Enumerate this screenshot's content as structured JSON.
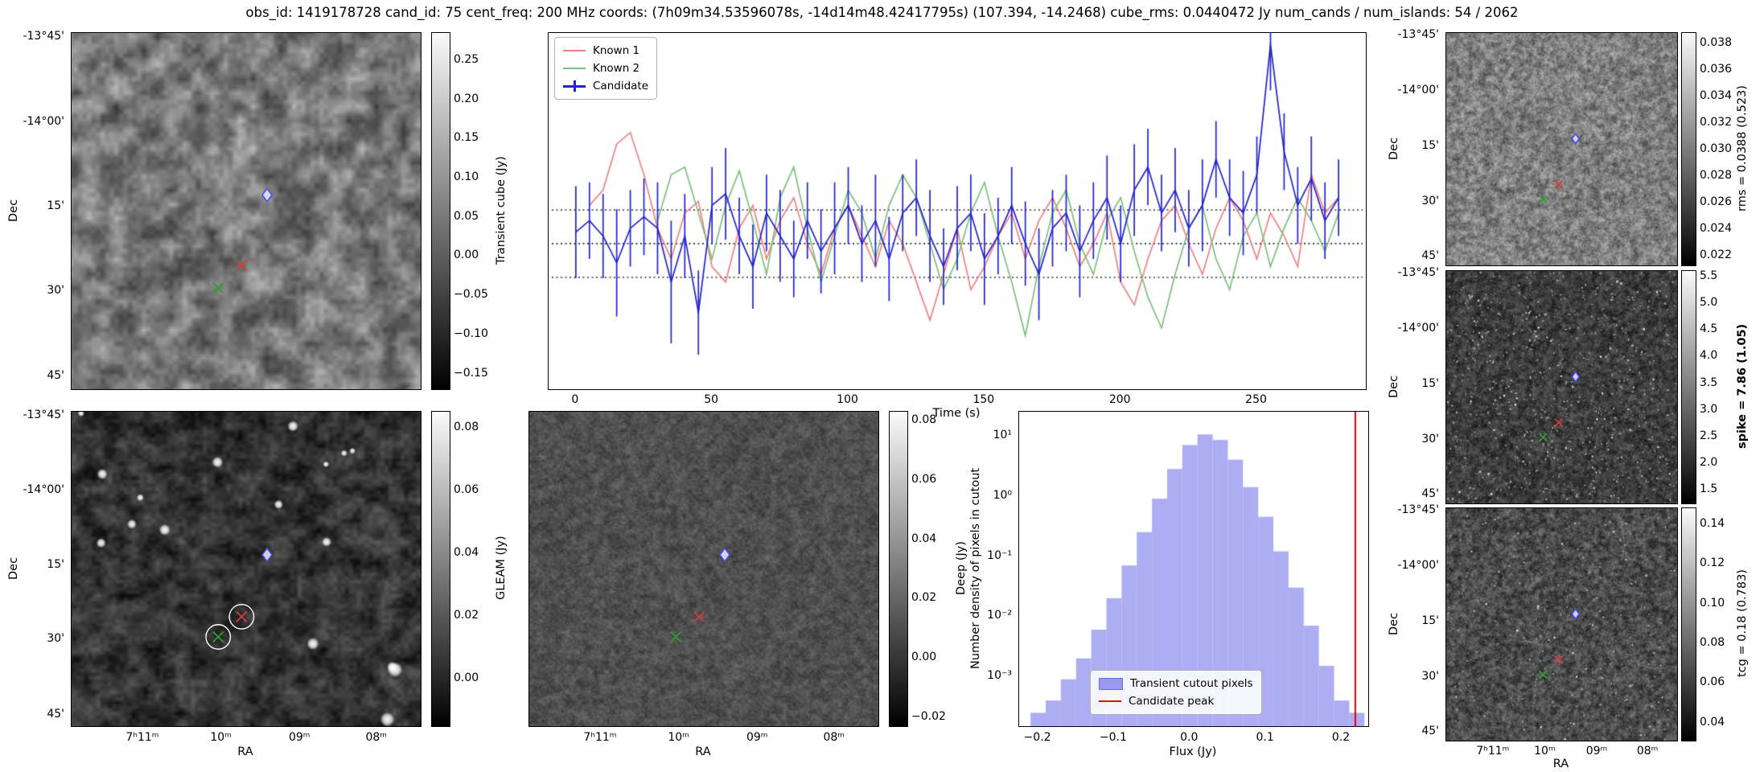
{
  "title": "obs_id: 1419178728 cand_id: 75 cent_freq: 200 MHz coords: (7h09m34.53596078s, -14d14m48.42417795s) (107.394, -14.2468) cube_rms: 0.0440472 Jy num_cands / num_islands: 54 / 2062",
  "labels": {
    "dec": "Dec",
    "ra": "RA"
  },
  "ticks": {
    "dec": [
      "-13°45'",
      "-14°00'",
      "15'",
      "30'",
      "45'"
    ],
    "ra": [
      "7ʰ11ᵐ",
      "10ᵐ",
      "09ᵐ",
      "08ᵐ"
    ]
  },
  "colorbars": {
    "cube": {
      "label": "Transient cube (Jy)",
      "tick_labels": [
        "0.25",
        "0.20",
        "0.15",
        "0.10",
        "0.05",
        "0.00",
        "−0.05",
        "−0.10",
        "−0.15"
      ],
      "tick_values": [
        0.25,
        0.2,
        0.15,
        0.1,
        0.05,
        0.0,
        -0.05,
        -0.1,
        -0.15
      ],
      "vmin": -0.17,
      "vmax": 0.285
    },
    "gleam": {
      "label": "GLEAM (Jy)",
      "tick_labels": [
        "0.08",
        "0.06",
        "0.04",
        "0.02",
        "0.00"
      ],
      "tick_values": [
        0.08,
        0.06,
        0.04,
        0.02,
        0.0
      ],
      "vmin": -0.015,
      "vmax": 0.085
    },
    "deep": {
      "label": "Deep (Jy)",
      "tick_labels": [
        "0.08",
        "0.06",
        "0.04",
        "0.02",
        "0.00",
        "−0.02"
      ],
      "tick_values": [
        0.08,
        0.06,
        0.04,
        0.02,
        0.0,
        -0.02
      ],
      "vmin": -0.023,
      "vmax": 0.083
    },
    "rms": {
      "label": "rms = 0.0388 (0.523)",
      "tick_labels": [
        "0.038",
        "0.036",
        "0.034",
        "0.032",
        "0.030",
        "0.028",
        "0.026",
        "0.024",
        "0.022"
      ],
      "tick_values": [
        0.038,
        0.036,
        0.034,
        0.032,
        0.03,
        0.028,
        0.026,
        0.024,
        0.022
      ],
      "vmin": 0.0213,
      "vmax": 0.0388
    },
    "spike": {
      "label": "spike = 7.86 (1.05)",
      "tick_labels": [
        "5.5",
        "5.0",
        "4.5",
        "4.0",
        "3.5",
        "3.0",
        "2.5",
        "2.0",
        "1.5"
      ],
      "tick_values": [
        5.5,
        5.0,
        4.5,
        4.0,
        3.5,
        3.0,
        2.5,
        2.0,
        1.5
      ],
      "vmin": 1.25,
      "vmax": 5.6
    },
    "tcg": {
      "label": "tcg = 0.18 (0.783)",
      "tick_labels": [
        "0.14",
        "0.12",
        "0.10",
        "0.08",
        "0.06",
        "0.04"
      ],
      "tick_values": [
        0.14,
        0.12,
        0.1,
        0.08,
        0.06,
        0.04
      ],
      "vmin": 0.031,
      "vmax": 0.148
    }
  },
  "markers": [
    {
      "name": "candidate",
      "shape": "diamond",
      "color": "#4848e8",
      "x": 0.56,
      "y": 0.455
    },
    {
      "name": "known-1",
      "shape": "x",
      "color": "#d63c3c",
      "x": 0.487,
      "y": 0.652
    },
    {
      "name": "known-2",
      "shape": "x",
      "color": "#2f9e2f",
      "x": 0.42,
      "y": 0.716
    }
  ],
  "lc_legend": {
    "items": [
      {
        "label": "Known 1",
        "color": "#f08080",
        "type": "line"
      },
      {
        "label": "Known 2",
        "color": "#7cbf7c",
        "type": "line"
      },
      {
        "label": "Candidate",
        "color": "#2222cc",
        "type": "errorbar"
      }
    ]
  },
  "hist_legend": {
    "items": [
      {
        "label": "Transient cutout pixels",
        "color": "#9898f0",
        "type": "patch"
      },
      {
        "label": "Candidate peak",
        "color": "#e00000",
        "type": "line"
      }
    ]
  },
  "chart_data": [
    {
      "type": "line",
      "title": "",
      "xlabel": "Time (s)",
      "ylabel": "Transient cube (Jy)",
      "xlim": [
        -10,
        290
      ],
      "ylim": [
        -0.19,
        0.275
      ],
      "xtick_values": [
        0,
        50,
        100,
        150,
        200,
        250
      ],
      "xtick_labels": [
        "0",
        "50",
        "100",
        "150",
        "200",
        "250"
      ],
      "hlines": [
        0.0440472,
        0.0,
        -0.0440472
      ],
      "x": [
        0,
        5,
        10,
        15,
        20,
        25,
        30,
        35,
        40,
        45,
        50,
        55,
        60,
        65,
        70,
        75,
        80,
        85,
        90,
        95,
        100,
        105,
        110,
        115,
        120,
        125,
        130,
        135,
        140,
        145,
        150,
        155,
        160,
        165,
        170,
        175,
        180,
        185,
        190,
        195,
        200,
        205,
        210,
        215,
        220,
        225,
        230,
        235,
        240,
        245,
        250,
        255,
        260,
        265,
        270,
        275,
        280
      ],
      "series": [
        {
          "name": "Known 1",
          "color": "#f08080",
          "values": [
            null,
            0.05,
            0.07,
            0.13,
            0.145,
            0.09,
            0.02,
            -0.02,
            0.04,
            0.055,
            -0.03,
            -0.05,
            0.02,
            0.05,
            -0.02,
            0.03,
            0.06,
            0.0,
            -0.04,
            0.02,
            0.05,
            0.01,
            -0.03,
            0.03,
            0.0,
            -0.05,
            -0.1,
            -0.04,
            0.02,
            -0.06,
            -0.03,
            0.01,
            0.04,
            -0.02,
            0.03,
            0.06,
            0.02,
            -0.03,
            0.0,
            0.04,
            -0.05,
            -0.08,
            -0.02,
            0.03,
            0.05,
            0.0,
            -0.04,
            0.02,
            0.06,
            0.03,
            -0.02,
            0.04,
            0.01,
            -0.03,
            0.09,
            0.04,
            0.06
          ]
        },
        {
          "name": "Known 2",
          "color": "#7cbf7c",
          "values": [
            null,
            null,
            null,
            null,
            null,
            null,
            0.03,
            0.09,
            0.1,
            0.04,
            -0.02,
            0.05,
            0.095,
            0.03,
            -0.04,
            0.06,
            0.1,
            0.02,
            -0.05,
            0.01,
            0.07,
            0.04,
            -0.02,
            0.05,
            0.09,
            0.06,
            0.0,
            -0.06,
            -0.02,
            0.04,
            0.08,
            0.01,
            -0.05,
            -0.12,
            -0.03,
            0.04,
            0.07,
            0.0,
            -0.04,
            0.03,
            0.06,
            -0.01,
            -0.07,
            -0.11,
            -0.04,
            0.02,
            0.05,
            -0.02,
            -0.06,
            0.01,
            0.04,
            -0.03,
            0.02,
            0.06,
            0.03,
            -0.01,
            0.04
          ]
        },
        {
          "name": "Candidate",
          "color": "#2222cc",
          "values": [
            0.015,
            0.03,
            0.01,
            -0.025,
            0.02,
            0.035,
            0.02,
            -0.05,
            0.01,
            -0.09,
            0.05,
            0.065,
            0.01,
            -0.03,
            0.04,
            0.01,
            -0.02,
            0.03,
            -0.01,
            0.02,
            0.05,
            0.0,
            0.03,
            -0.02,
            0.04,
            0.06,
            0.01,
            -0.03,
            0.02,
            0.04,
            -0.02,
            0.01,
            0.05,
            0.0,
            -0.04,
            0.02,
            0.04,
            -0.01,
            0.03,
            0.06,
            0.0,
            0.07,
            0.1,
            0.04,
            0.07,
            0.02,
            0.05,
            0.11,
            0.06,
            0.04,
            0.09,
            0.26,
            0.12,
            0.05,
            0.085,
            0.03,
            0.06
          ],
          "yerr": [
            0.06,
            0.05,
            0.055,
            0.07,
            0.05,
            0.05,
            0.06,
            0.08,
            0.055,
            0.055,
            0.05,
            0.06,
            0.05,
            0.055,
            0.05,
            0.06,
            0.05,
            0.05,
            0.055,
            0.06,
            0.05,
            0.05,
            0.06,
            0.055,
            0.05,
            0.05,
            0.06,
            0.05,
            0.055,
            0.05,
            0.06,
            0.05,
            0.05,
            0.055,
            0.06,
            0.05,
            0.05,
            0.06,
            0.05,
            0.055,
            0.05,
            0.06,
            0.05,
            0.05,
            0.055,
            0.05,
            0.06,
            0.05,
            0.05,
            0.055,
            0.05,
            0.06,
            0.05,
            0.05,
            0.055,
            0.05,
            0.05
          ]
        }
      ],
      "legend_position": "upper left"
    },
    {
      "type": "bar",
      "title": "",
      "xlabel": "Flux (Jy)",
      "ylabel": "Number density of pixels in cutout",
      "yscale": "log",
      "xlim": [
        -0.225,
        0.235
      ],
      "ylim": [
        0.00015,
        25
      ],
      "bin_edges": [
        -0.21,
        -0.19,
        -0.17,
        -0.15,
        -0.13,
        -0.11,
        -0.09,
        -0.07,
        -0.05,
        -0.03,
        -0.01,
        0.01,
        0.03,
        0.05,
        0.07,
        0.09,
        0.11,
        0.13,
        0.15,
        0.17,
        0.19,
        0.21,
        0.23
      ],
      "values": [
        0.00025,
        0.0004,
        0.0009,
        0.002,
        0.006,
        0.02,
        0.07,
        0.25,
        0.9,
        2.8,
        7.0,
        10.5,
        8.5,
        4.0,
        1.4,
        0.45,
        0.12,
        0.03,
        0.007,
        0.0015,
        0.0004,
        0.00025
      ],
      "bar_color": "#9898f0",
      "vline_x": 0.218,
      "vline_color": "#e00000",
      "xtick_values": [
        -0.2,
        -0.1,
        0.0,
        0.1,
        0.2
      ],
      "xtick_labels": [
        "−0.2",
        "−0.1",
        "0.0",
        "0.1",
        "0.2"
      ],
      "ytick_values": [
        10,
        1,
        0.1,
        0.01,
        0.001
      ],
      "ytick_labels": [
        "10¹",
        "10⁰",
        "10⁻¹",
        "10⁻²",
        "10⁻³"
      ],
      "legend_position": "lower center"
    }
  ]
}
